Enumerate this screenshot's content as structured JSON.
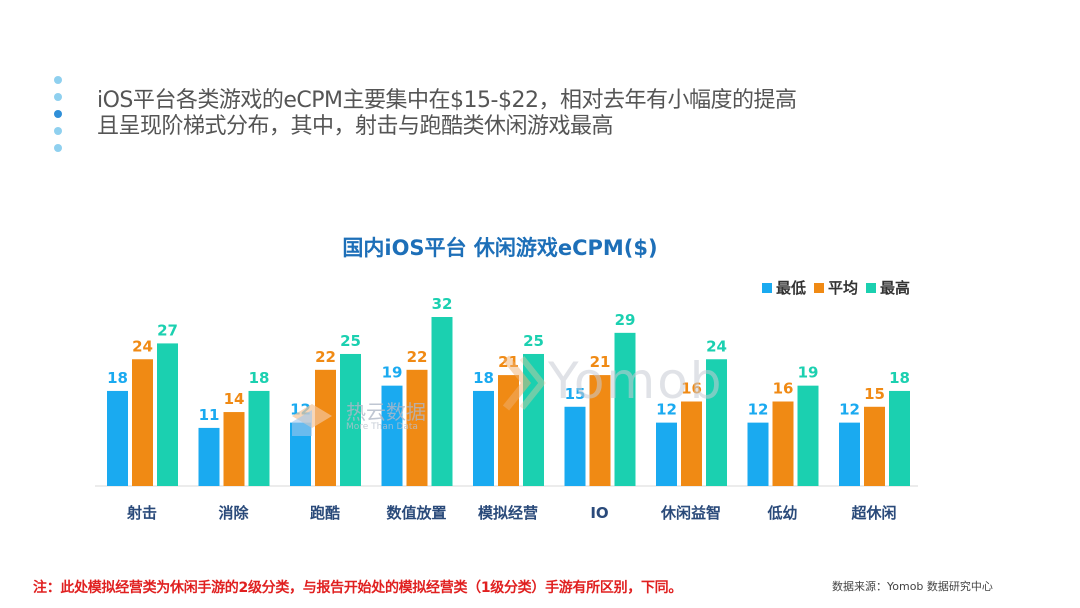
{
  "headline": {
    "line1": "iOS平台各类游戏的eCPM主要集中在$15-$22，相对去年有小幅度的提高",
    "line2": "且呈现阶梯式分布，其中，射击与跑酷类休闲游戏最高"
  },
  "colors": {
    "low": "#1aaaf0",
    "avg": "#f08a14",
    "high": "#1bd0b0",
    "title": "#1d6fb8"
  },
  "chart_data": {
    "type": "bar",
    "title": "国内iOS平台 休闲游戏eCPM($)",
    "categories": [
      "射击",
      "消除",
      "跑酷",
      "数值放置",
      "模拟经营",
      "IO",
      "休闲益智",
      "低幼",
      "超休闲"
    ],
    "series": [
      {
        "name": "最低",
        "values": [
          18,
          11,
          12,
          19,
          18,
          15,
          12,
          12,
          12
        ]
      },
      {
        "name": "平均",
        "values": [
          24,
          14,
          22,
          22,
          21,
          21,
          16,
          16,
          15
        ]
      },
      {
        "name": "最高",
        "values": [
          27,
          18,
          25,
          32,
          25,
          29,
          24,
          19,
          18
        ]
      }
    ],
    "ylim": [
      0,
      32
    ],
    "legend": "top-right",
    "grid": false
  },
  "watermark": {
    "left": "热云数据",
    "left_sub": "More Than Data",
    "right": "Yomob"
  },
  "footnote": "注：此处模拟经营类为休闲手游的2级分类，与报告开始处的模拟经营类（1级分类）手游有所区别，下同。",
  "source": "数据来源：Yomob 数据研究中心"
}
